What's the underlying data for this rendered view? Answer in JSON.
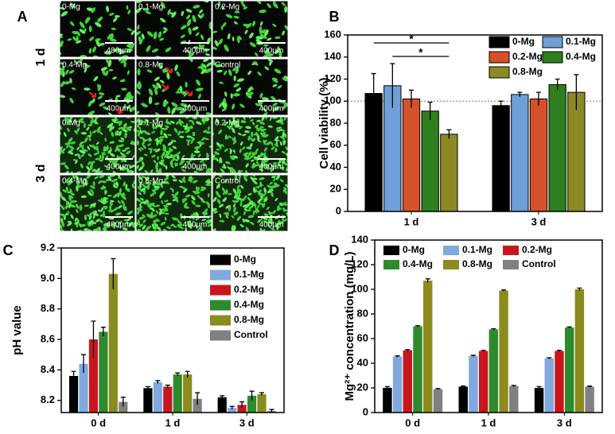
{
  "image_panel": {
    "label": "A",
    "row_labels": [
      "1 d",
      "3 d"
    ],
    "tiles": [
      {
        "label": "0-Mg",
        "scale_bar": "400μm"
      },
      {
        "label": "0.1-Mg",
        "scale_bar": "400μm"
      },
      {
        "label": "0.2-Mg",
        "scale_bar": "400μm"
      },
      {
        "label": "0.4-Mg",
        "scale_bar": "400μm"
      },
      {
        "label": "0.8-Mg",
        "scale_bar": "400μm"
      },
      {
        "label": "Control",
        "scale_bar": "400μm"
      },
      {
        "label": "0-Mg",
        "scale_bar": "400μm"
      },
      {
        "label": "0.1-Mg",
        "scale_bar": "400μm"
      },
      {
        "label": "0.2-Mg",
        "scale_bar": "400μm"
      },
      {
        "label": "0.4-Mg",
        "scale_bar": "400μm"
      },
      {
        "label": "0.8-Mg",
        "scale_bar": "400μm"
      },
      {
        "label": "Control",
        "scale_bar": "400μm"
      }
    ]
  },
  "chart_data": [
    {
      "type": "bar",
      "panel_label": "B",
      "ylabel": "Cell viability (%)",
      "categories": [
        "1 d",
        "3 d"
      ],
      "series": [
        {
          "name": "0-Mg",
          "color": "#000000",
          "values": [
            107,
            96
          ],
          "errors": [
            18,
            4
          ]
        },
        {
          "name": "0.1-Mg",
          "color": "#6f9fd8",
          "values": [
            114,
            106
          ],
          "errors": [
            20,
            2
          ]
        },
        {
          "name": "0.2-Mg",
          "color": "#d4512a",
          "values": [
            102,
            102
          ],
          "errors": [
            8,
            6
          ]
        },
        {
          "name": "0.4-Mg",
          "color": "#2f7f1e",
          "values": [
            91,
            115
          ],
          "errors": [
            8,
            5
          ]
        },
        {
          "name": "0.8-Mg",
          "color": "#8c8a26",
          "values": [
            70,
            108
          ],
          "errors": [
            4,
            16
          ]
        }
      ],
      "ylim": [
        0,
        160
      ],
      "yticks": [
        0,
        20,
        40,
        60,
        80,
        100,
        120,
        140,
        160
      ],
      "reference_line": 100,
      "annotations": [
        "*",
        "*"
      ],
      "legend": "upper right"
    },
    {
      "type": "bar",
      "panel_label": "C",
      "ylabel": "pH value",
      "categories": [
        "0 d",
        "1 d",
        "3 d"
      ],
      "series": [
        {
          "name": "0-Mg",
          "color": "#000000",
          "values": [
            8.36,
            8.28,
            8.22
          ],
          "errors": [
            0.03,
            0.01,
            0.01
          ]
        },
        {
          "name": "0.1-Mg",
          "color": "#7fa9df",
          "values": [
            8.44,
            8.32,
            8.15
          ],
          "errors": [
            0.06,
            0.01,
            0.01
          ]
        },
        {
          "name": "0.2-Mg",
          "color": "#c8161d",
          "values": [
            8.6,
            8.29,
            8.17
          ],
          "errors": [
            0.12,
            0.01,
            0.02
          ]
        },
        {
          "name": "0.4-Mg",
          "color": "#2d8a2d",
          "values": [
            8.65,
            8.37,
            8.23
          ],
          "errors": [
            0.03,
            0.01,
            0.03
          ]
        },
        {
          "name": "0.8-Mg",
          "color": "#8b8b1e",
          "values": [
            9.03,
            8.37,
            8.24
          ],
          "errors": [
            0.1,
            0.02,
            0.01
          ]
        },
        {
          "name": "Control",
          "color": "#808080",
          "values": [
            8.19,
            8.21,
            8.13
          ],
          "errors": [
            0.03,
            0.04,
            0.01
          ]
        }
      ],
      "ylim": [
        8.12,
        9.2
      ],
      "yticks": [
        8.2,
        8.4,
        8.6,
        8.8,
        {
          "value": 9,
          "label": "9.0"
        },
        9.2
      ],
      "legend": "upper right"
    },
    {
      "type": "bar",
      "panel_label": "D",
      "ylabel": "Mg²⁺ concentration (mg/L)",
      "categories": [
        "0 d",
        "1 d",
        "3 d"
      ],
      "series": [
        {
          "name": "0-Mg",
          "color": "#000000",
          "values": [
            20,
            21,
            20
          ],
          "errors": [
            1,
            0.5,
            1
          ]
        },
        {
          "name": "0.1-Mg",
          "color": "#7fa9df",
          "values": [
            45.5,
            46,
            44
          ],
          "errors": [
            0.5,
            0.5,
            0.5
          ]
        },
        {
          "name": "0.2-Mg",
          "color": "#c8161d",
          "values": [
            50.5,
            50,
            50
          ],
          "errors": [
            0.5,
            0.5,
            0.5
          ]
        },
        {
          "name": "0.4-Mg",
          "color": "#2d8a2d",
          "values": [
            70,
            67.5,
            69
          ],
          "errors": [
            0.5,
            0.5,
            0.5
          ]
        },
        {
          "name": "0.8-Mg",
          "color": "#8b8b1e",
          "values": [
            107,
            99,
            100
          ],
          "errors": [
            1.5,
            0.5,
            1
          ]
        },
        {
          "name": "Control",
          "color": "#808080",
          "values": [
            19,
            21.5,
            21
          ],
          "errors": [
            0.5,
            0.5,
            0.5
          ]
        }
      ],
      "ylim": [
        0,
        140
      ],
      "yticks": [
        0,
        20,
        40,
        60,
        80,
        100,
        120,
        140
      ],
      "legend": "upper"
    }
  ]
}
